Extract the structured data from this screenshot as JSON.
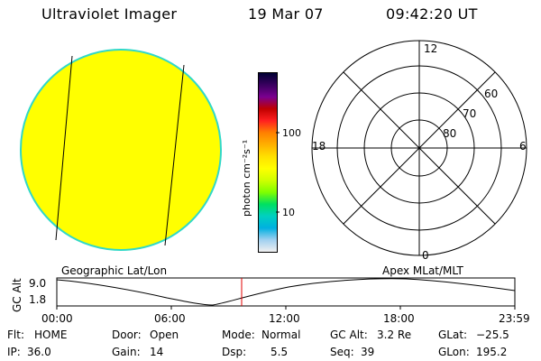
{
  "header": {
    "instrument": "Ultraviolet Imager",
    "date": "19 Mar 07",
    "time": "09:42:20 UT"
  },
  "colorbar": {
    "unit_label": "photon cm⁻²s⁻¹",
    "tick_100": "100",
    "tick_10": "10",
    "colors": [
      "#000033",
      "#3a0060",
      "#7a0090",
      "#c00000",
      "#ff2020",
      "#ff8000",
      "#ffb000",
      "#ffe000",
      "#ffff00",
      "#d0ff00",
      "#80ff00",
      "#00e060",
      "#00d0c0",
      "#00b0e0",
      "#a0d0f0",
      "#f0f0f0"
    ]
  },
  "polar_plot": {
    "mlt_labels": {
      "top": "12",
      "left": "18",
      "right": "6",
      "bottom": "0"
    },
    "lat_labels": [
      "60",
      "70",
      "80"
    ]
  },
  "image": {
    "disk_color": "#ffff00",
    "disk_edge_color": "#30d8c8"
  },
  "orbit_panel": {
    "left_title": "Geographic Lat/Lon",
    "right_title": "Apex MLat/MLT",
    "y_axis_label": "GC Alt",
    "y_max_label": "9.0",
    "y_min_label": "1.8",
    "time_ticks": [
      "00:00",
      "06:00",
      "12:00",
      "18:00",
      "23:59"
    ],
    "current_time_marker": "09:42",
    "marker_color": "#e00000"
  },
  "footer": {
    "flt_label": "Flt:",
    "flt_value": "HOME",
    "ip_label": "IP:",
    "ip_value": "36.0",
    "door_label": "Door:",
    "door_value": "Open",
    "gain_label": "Gain:",
    "gain_value": "14",
    "mode_label": "Mode:",
    "mode_value": "Normal",
    "dsp_label": "Dsp:",
    "dsp_value": "5.5",
    "gcalt_label": "GC Alt:",
    "gcalt_value": "3.2 Re",
    "seq_label": "Seq:",
    "seq_value": "39",
    "glat_label": "GLat:",
    "glat_value": "−25.5",
    "glon_label": "GLon:",
    "glon_value": "195.2"
  }
}
